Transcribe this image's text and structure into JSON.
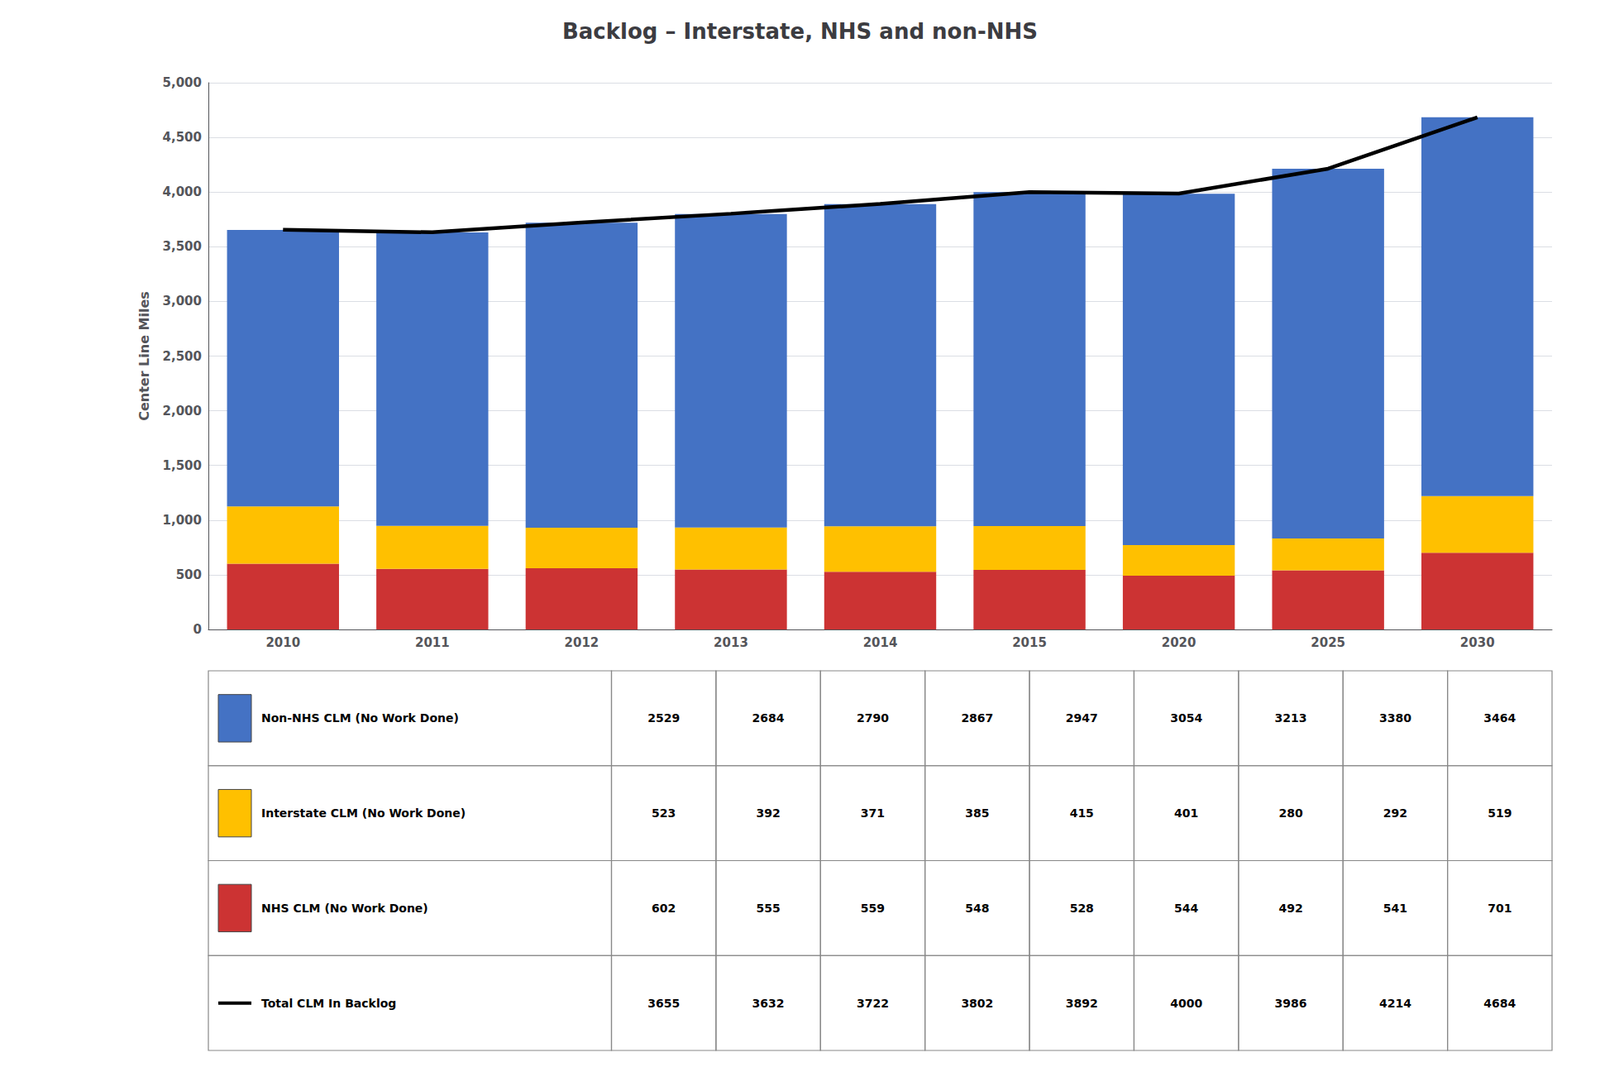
{
  "chart_data": {
    "type": "bar",
    "title": "Backlog – Interstate, NHS and non-NHS",
    "categories": [
      "2010",
      "2011",
      "2012",
      "2013",
      "2014",
      "2015",
      "2020",
      "2025",
      "2030"
    ],
    "y_label": "Center Line Miles",
    "stacked": true,
    "grid": true,
    "ylim": [
      0,
      5000
    ],
    "yticks": [
      0,
      500,
      1000,
      1500,
      2000,
      2500,
      3000,
      3500,
      4000,
      4500,
      5000
    ],
    "series": [
      {
        "name": "NHS CLM (No Work Done)",
        "type": "bar",
        "color": "#CC3333",
        "values": [
          602,
          555,
          559,
          548,
          528,
          544,
          492,
          541,
          701
        ]
      },
      {
        "name": "Interstate CLM (No Work Done)",
        "type": "bar",
        "color": "#FFC000",
        "values": [
          523,
          392,
          371,
          385,
          415,
          401,
          280,
          292,
          519
        ]
      },
      {
        "name": "Non-NHS CLM (No Work Done)",
        "type": "bar",
        "color": "#4472C4",
        "values": [
          2529,
          2684,
          2790,
          2867,
          2947,
          3054,
          3213,
          3380,
          3464
        ]
      },
      {
        "name": "Total CLM In Backlog",
        "type": "line",
        "color": "#000000",
        "values": [
          3655,
          3632,
          3722,
          3802,
          3892,
          4000,
          3986,
          4214,
          4684
        ]
      }
    ]
  }
}
